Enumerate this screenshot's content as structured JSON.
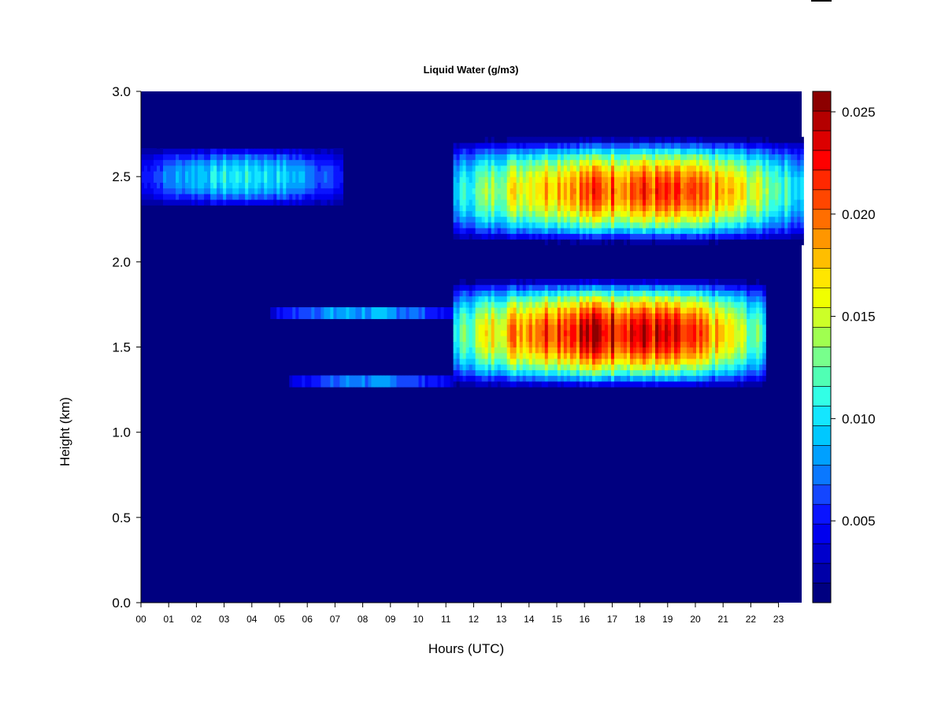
{
  "chart_data": {
    "type": "heatmap",
    "title": "Liquid Water (g/m3)",
    "xlabel": "Hours (UTC)",
    "ylabel": "Height (km)",
    "xlim": [
      0,
      23.9
    ],
    "ylim": [
      0,
      3.0
    ],
    "x_ticks": [
      "00",
      "01",
      "02",
      "03",
      "04",
      "05",
      "06",
      "07",
      "08",
      "09",
      "10",
      "11",
      "12",
      "13",
      "14",
      "15",
      "16",
      "17",
      "18",
      "19",
      "20",
      "21",
      "22",
      "23"
    ],
    "y_ticks": [
      "0.0",
      "0.5",
      "1.0",
      "1.5",
      "2.0",
      "2.5",
      "3.0"
    ],
    "colorbar": {
      "range": [
        0.001,
        0.026
      ],
      "tick_labels": [
        "0.005",
        "0.010",
        "0.015",
        "0.020",
        "0.025"
      ],
      "tick_values": [
        0.005,
        0.01,
        0.015,
        0.02,
        0.025
      ],
      "colors": [
        "#000080",
        "#0000a8",
        "#0000cc",
        "#0000ee",
        "#0a14ff",
        "#1446ff",
        "#0a78ff",
        "#00a0ff",
        "#00c8ff",
        "#14e6ff",
        "#32ffe6",
        "#50ffb4",
        "#78ff8c",
        "#a0ff50",
        "#ccff28",
        "#f0ff00",
        "#ffe600",
        "#ffbe00",
        "#ff9600",
        "#ff6e00",
        "#ff4600",
        "#ff2800",
        "#ff0000",
        "#dc0000",
        "#b40000",
        "#8c0000"
      ]
    },
    "background_value": 0,
    "layers": [
      {
        "name": "upper layer early",
        "x_range": [
          0,
          7.3
        ],
        "y_center": 2.5,
        "y_half_width": 0.2,
        "peak": 0.0105
      },
      {
        "name": "upper layer late",
        "x_range": [
          11.3,
          23.9
        ],
        "y_center": 2.42,
        "y_half_width": 0.32,
        "peak": 0.021
      },
      {
        "name": "lower layer thin",
        "x_range": [
          4.7,
          11.3
        ],
        "y_center": 1.7,
        "y_half_width": 0.04,
        "peak": 0.01
      },
      {
        "name": "lower layer thin 2",
        "x_range": [
          5.3,
          11.3
        ],
        "y_center": 1.3,
        "y_half_width": 0.04,
        "peak": 0.009
      },
      {
        "name": "lower layer main",
        "x_range": [
          11.3,
          22.5
        ],
        "y_center": 1.58,
        "y_half_width": 0.33,
        "peak": 0.024
      }
    ]
  }
}
